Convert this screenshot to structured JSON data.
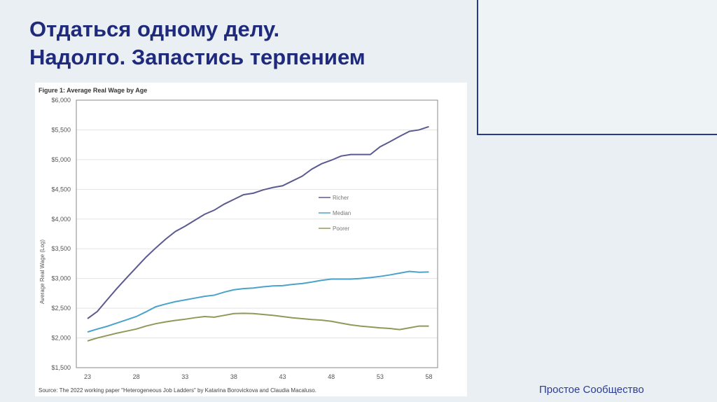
{
  "slide": {
    "title_line1": "Отдаться одному делу.",
    "title_line2": "Надолго. Запастись терпением",
    "footer": "Простое Сообщество"
  },
  "chart_data": {
    "type": "line",
    "title": "Figure 1: Average Real Wage by Age",
    "xlabel": "",
    "ylabel": "Average Real Wage (Log)",
    "source": "Source: The 2022  working paper \"Heterogeneous Job Ladders\" by Katarina Borovickova and Claudia Macaluso.",
    "ylim": [
      1500,
      6000
    ],
    "yticks": [
      "$1,500",
      "$2,000",
      "$2,500",
      "$3,000",
      "$3,500",
      "$4,000",
      "$4,500",
      "$5,000",
      "$5,500",
      "$6,000"
    ],
    "xticks": [
      "23",
      "28",
      "33",
      "38",
      "43",
      "48",
      "53",
      "58"
    ],
    "grid": true,
    "legend": "center-right",
    "x": [
      23,
      24,
      25,
      26,
      27,
      28,
      29,
      30,
      31,
      32,
      33,
      34,
      35,
      36,
      37,
      38,
      39,
      40,
      41,
      42,
      43,
      44,
      45,
      46,
      47,
      48,
      49,
      50,
      51,
      52,
      53,
      54,
      55,
      56,
      57,
      58
    ],
    "series": [
      {
        "name": "Richer",
        "color": "#5b5a90",
        "values": [
          2325,
          2445,
          2640,
          2830,
          3010,
          3185,
          3360,
          3515,
          3660,
          3790,
          3880,
          3980,
          4080,
          4150,
          4250,
          4330,
          4410,
          4435,
          4490,
          4530,
          4560,
          4640,
          4720,
          4840,
          4930,
          4990,
          5060,
          5085,
          5085,
          5085,
          5215,
          5300,
          5390,
          5475,
          5500,
          5555
        ]
      },
      {
        "name": "Median",
        "color": "#4aa3c8",
        "values": [
          2100,
          2150,
          2195,
          2250,
          2305,
          2360,
          2440,
          2525,
          2570,
          2610,
          2640,
          2670,
          2700,
          2720,
          2770,
          2810,
          2830,
          2840,
          2860,
          2875,
          2880,
          2900,
          2915,
          2940,
          2970,
          2990,
          2990,
          2990,
          3000,
          3015,
          3035,
          3060,
          3090,
          3120,
          3105,
          3110
        ]
      },
      {
        "name": "Poorer",
        "color": "#8f9a5a",
        "values": [
          1950,
          2000,
          2040,
          2080,
          2115,
          2150,
          2200,
          2240,
          2270,
          2295,
          2315,
          2340,
          2360,
          2350,
          2380,
          2410,
          2415,
          2410,
          2395,
          2380,
          2360,
          2340,
          2325,
          2310,
          2300,
          2280,
          2250,
          2220,
          2200,
          2185,
          2170,
          2160,
          2140,
          2170,
          2200,
          2200
        ]
      }
    ]
  }
}
